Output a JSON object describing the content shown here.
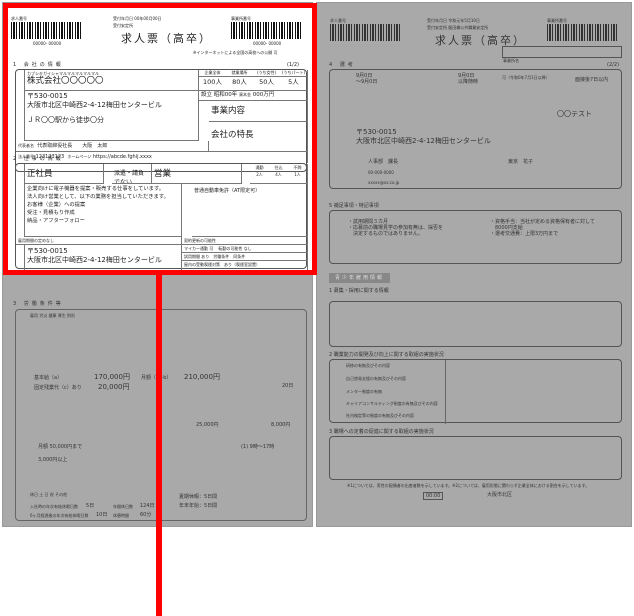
{
  "left_page": {
    "header": {
      "job_no_label": "求人番号",
      "job_no": "00000- 00000",
      "received_date": "受付年月日 00年00月00日",
      "office_label": "受付安定所",
      "title": "求人票（高卒）",
      "business_no_label": "事業所番号",
      "business_no": "00000- 00000",
      "internet_note": "※インターネットによる全国の高校への公開 可",
      "page": "(1/2)"
    },
    "company": {
      "section_title": "1 会社の情報",
      "kana": "カブシキガイシャマルマルマルマルマル",
      "name": "株式会社〇〇〇〇〇",
      "employees_headers": [
        "企業全体",
        "就業場所",
        "(うち女性)",
        "(うちパート)"
      ],
      "employees_values": [
        "100人",
        "80人",
        "50人",
        "5人"
      ],
      "established_label": "設立",
      "established": "昭和00年",
      "capital_label": "資本金",
      "capital": "000万円",
      "postal": "〒530-0015",
      "address": "大阪市北区中崎西2-4-12梅田センタービル",
      "access": "ＪＲ〇〇駅から徒歩〇分",
      "business": "事業内容",
      "feature": "会社の特長",
      "rep_label": "代表者名",
      "rep": "代表取締役社長　　大阪　太郎",
      "corp_no_label": "法人番号",
      "corp_no": "123123123",
      "homepage_label": "ホームページ",
      "homepage": "https://abcde.fghij.xxxx"
    },
    "job": {
      "section_title": "2 仕事の情報",
      "employment": "正社員",
      "dispatch": "派遣・請負でない",
      "job_title": "営業",
      "headcount_labels": [
        "通勤",
        "住込",
        "不問"
      ],
      "headcount_values": [
        "2人",
        "4人",
        "1人"
      ],
      "description": [
        "企業向けに電子機器を提案・販売する仕事をしています。",
        "法人向け営業として、以下の業務を担当していただきます。",
        "お客様（企業）への提案",
        "受注・見積もり作成",
        "納品・アフターフォロー"
      ],
      "license": "普通自動車免許（AT限定可）",
      "period": "雇用期間の定めなし",
      "renewal_label": "契約更新の可能性",
      "car_label": "マイカー通勤",
      "car": "可",
      "transfer_label": "転勤の可能性",
      "transfer": "なし",
      "trial_label": "試用期間",
      "trial": "あり　労働条件　同条件",
      "postal": "〒530-0015",
      "address": "大阪市北区中崎西2-4-12梅田センタービル",
      "smoke": "屋内の受動喫煙対策　あり（喫煙室設置）"
    },
    "conditions": {
      "section_title": "3 労働条件等",
      "insurance": "雇用 労災 健康 厚生 財形",
      "base_pay_label": "基本給（a）",
      "base_pay": "170,000円",
      "fixed_allowance_label": "固定残業代（c）あり",
      "fixed_allowance": "20,000円",
      "monthly_label": "月額（a+b）",
      "monthly": "210,000円",
      "pay_day": "20日",
      "allowance1": "25,000円",
      "allowance2": "8,000円",
      "bonus_limit": "月額 50,000円まで",
      "raise": "3,000円以上",
      "hours": "(1) 9時〜17時",
      "holiday": "休日 土 日 祝 その他",
      "annual_leave_first_label": "入社時の年次有給休暇日数",
      "annual_leave_first": "5日",
      "annual_holidays_label": "年間休日数",
      "annual_holidays": "124日",
      "leave_6m_label": "6ヶ月経過後の年次有給休暇日数",
      "leave_6m": "10日",
      "break_label": "休憩時間",
      "break": "60分",
      "vacations": [
        "夏期休暇：5日間",
        "年末年始：5日間"
      ]
    }
  },
  "right_page": {
    "header": {
      "job_no_label": "求人番号",
      "received_date": "受付年月日 令和元年5月10日",
      "office": "受付安定所 飯田橋公共職業安定所",
      "title": "求人票（高卒）",
      "business_no_label": "事業所番号",
      "business_name_label": "事業所名",
      "page": "(2/2)"
    },
    "selection": {
      "section_title": "4 選考",
      "apply_period": [
        "9月0日",
        "〜9月0日"
      ],
      "exam_date": [
        "9月0日",
        "以降随時"
      ],
      "early": "可（令和0年7月1日以降）",
      "result": "面接後7日以内",
      "test": "〇〇テスト",
      "postal": "〒530-0015",
      "address": "大阪市北区中崎西2-4-12梅田センタービル",
      "contact_title": "人事部　課長",
      "contact_name": "東京　花子",
      "phone": "00-000-0000",
      "email": "xxxxx@xx.co.jp"
    },
    "notes": {
      "section_title": "5 補足事項・特記事項",
      "left": [
        "・試用期間３カ月",
        "・応募前の職場見学の参加有無は、採否を",
        "　決定するものではありません。"
      ],
      "right": [
        "・資格手当：当社が定める資格保有者に対して",
        "　8000円支給",
        "・選考交通費：上限3万円まで"
      ]
    },
    "youth": {
      "title": "青少年雇用情報",
      "s1": "1 募集・採用に関する情報",
      "s2": "2 職業能力の開発及び向上に関する取組の実施状況",
      "s3": "3 職場への定着の促進に関する取組の実施状況",
      "s2_rows": [
        "研修の有無及びその内容",
        "自己啓発支援の有無及びその内容",
        "メンター制度の有無",
        "キャリアコンサルティング制度の有無及びその内容",
        "社内検定等の制度の有無及びその内容"
      ],
      "footnote": "※1については、男性の配偶者の出産者数を示しています。※2については、雇用形態に関わらず企業全体における割合を示しています。",
      "hours_value": "00:00",
      "area": "大阪市北区"
    }
  }
}
